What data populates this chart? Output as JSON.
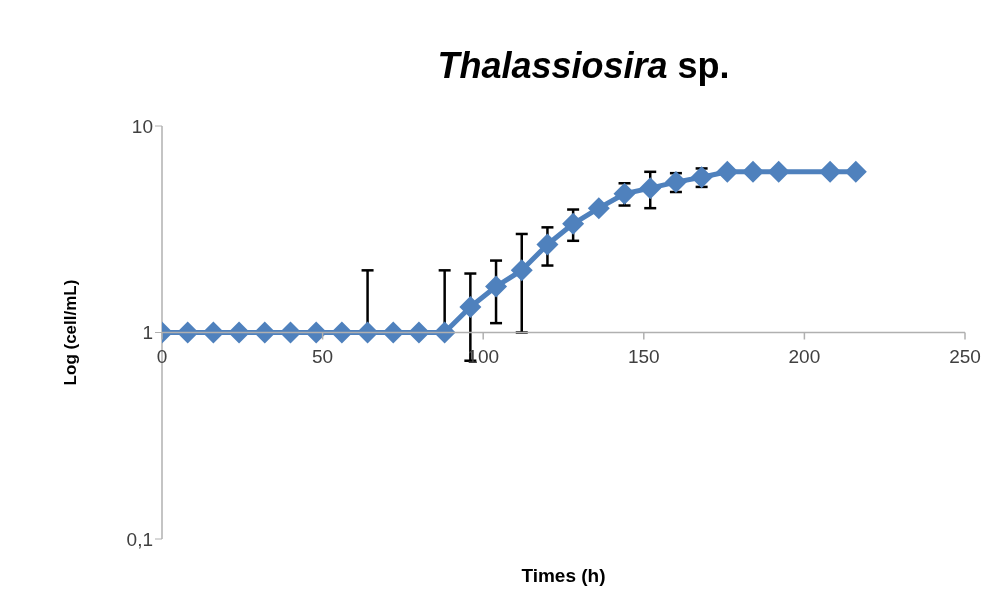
{
  "chart_data": {
    "type": "line",
    "title": "Thalassiosira sp.",
    "xlabel": "Times (h)",
    "ylabel": "Log (cell/mL)",
    "log": "y",
    "xlim": [
      0,
      250
    ],
    "xticks": [
      0,
      50,
      100,
      150,
      200,
      250
    ],
    "ylim": [
      0.1,
      10
    ],
    "yticks": [
      {
        "value": 0.1,
        "label": "0,1"
      },
      1,
      10
    ],
    "marker": "diamond",
    "line_style": "solid",
    "x": [
      0,
      8,
      16,
      24,
      32,
      40,
      48,
      56,
      64,
      72,
      80,
      88,
      96,
      104,
      112,
      120,
      128,
      136,
      144,
      152,
      160,
      168,
      176,
      184,
      192,
      208,
      216
    ],
    "series": [
      {
        "color": "#4f81bd",
        "values": [
          1,
          1,
          1,
          1,
          1,
          1,
          1,
          1,
          1,
          1,
          1,
          1,
          1.33,
          1.67,
          2.0,
          2.67,
          3.36,
          4.0,
          4.7,
          5.0,
          5.35,
          5.65,
          6.0,
          6.0,
          6.0,
          6.0,
          6.0
        ],
        "errors": [
          null,
          null,
          null,
          null,
          null,
          null,
          null,
          null,
          1,
          null,
          null,
          1,
          0.6,
          0.56,
          1,
          0.56,
          0.58,
          null,
          0.58,
          1,
          0.56,
          0.58,
          null,
          null,
          null,
          null,
          null
        ]
      }
    ]
  }
}
